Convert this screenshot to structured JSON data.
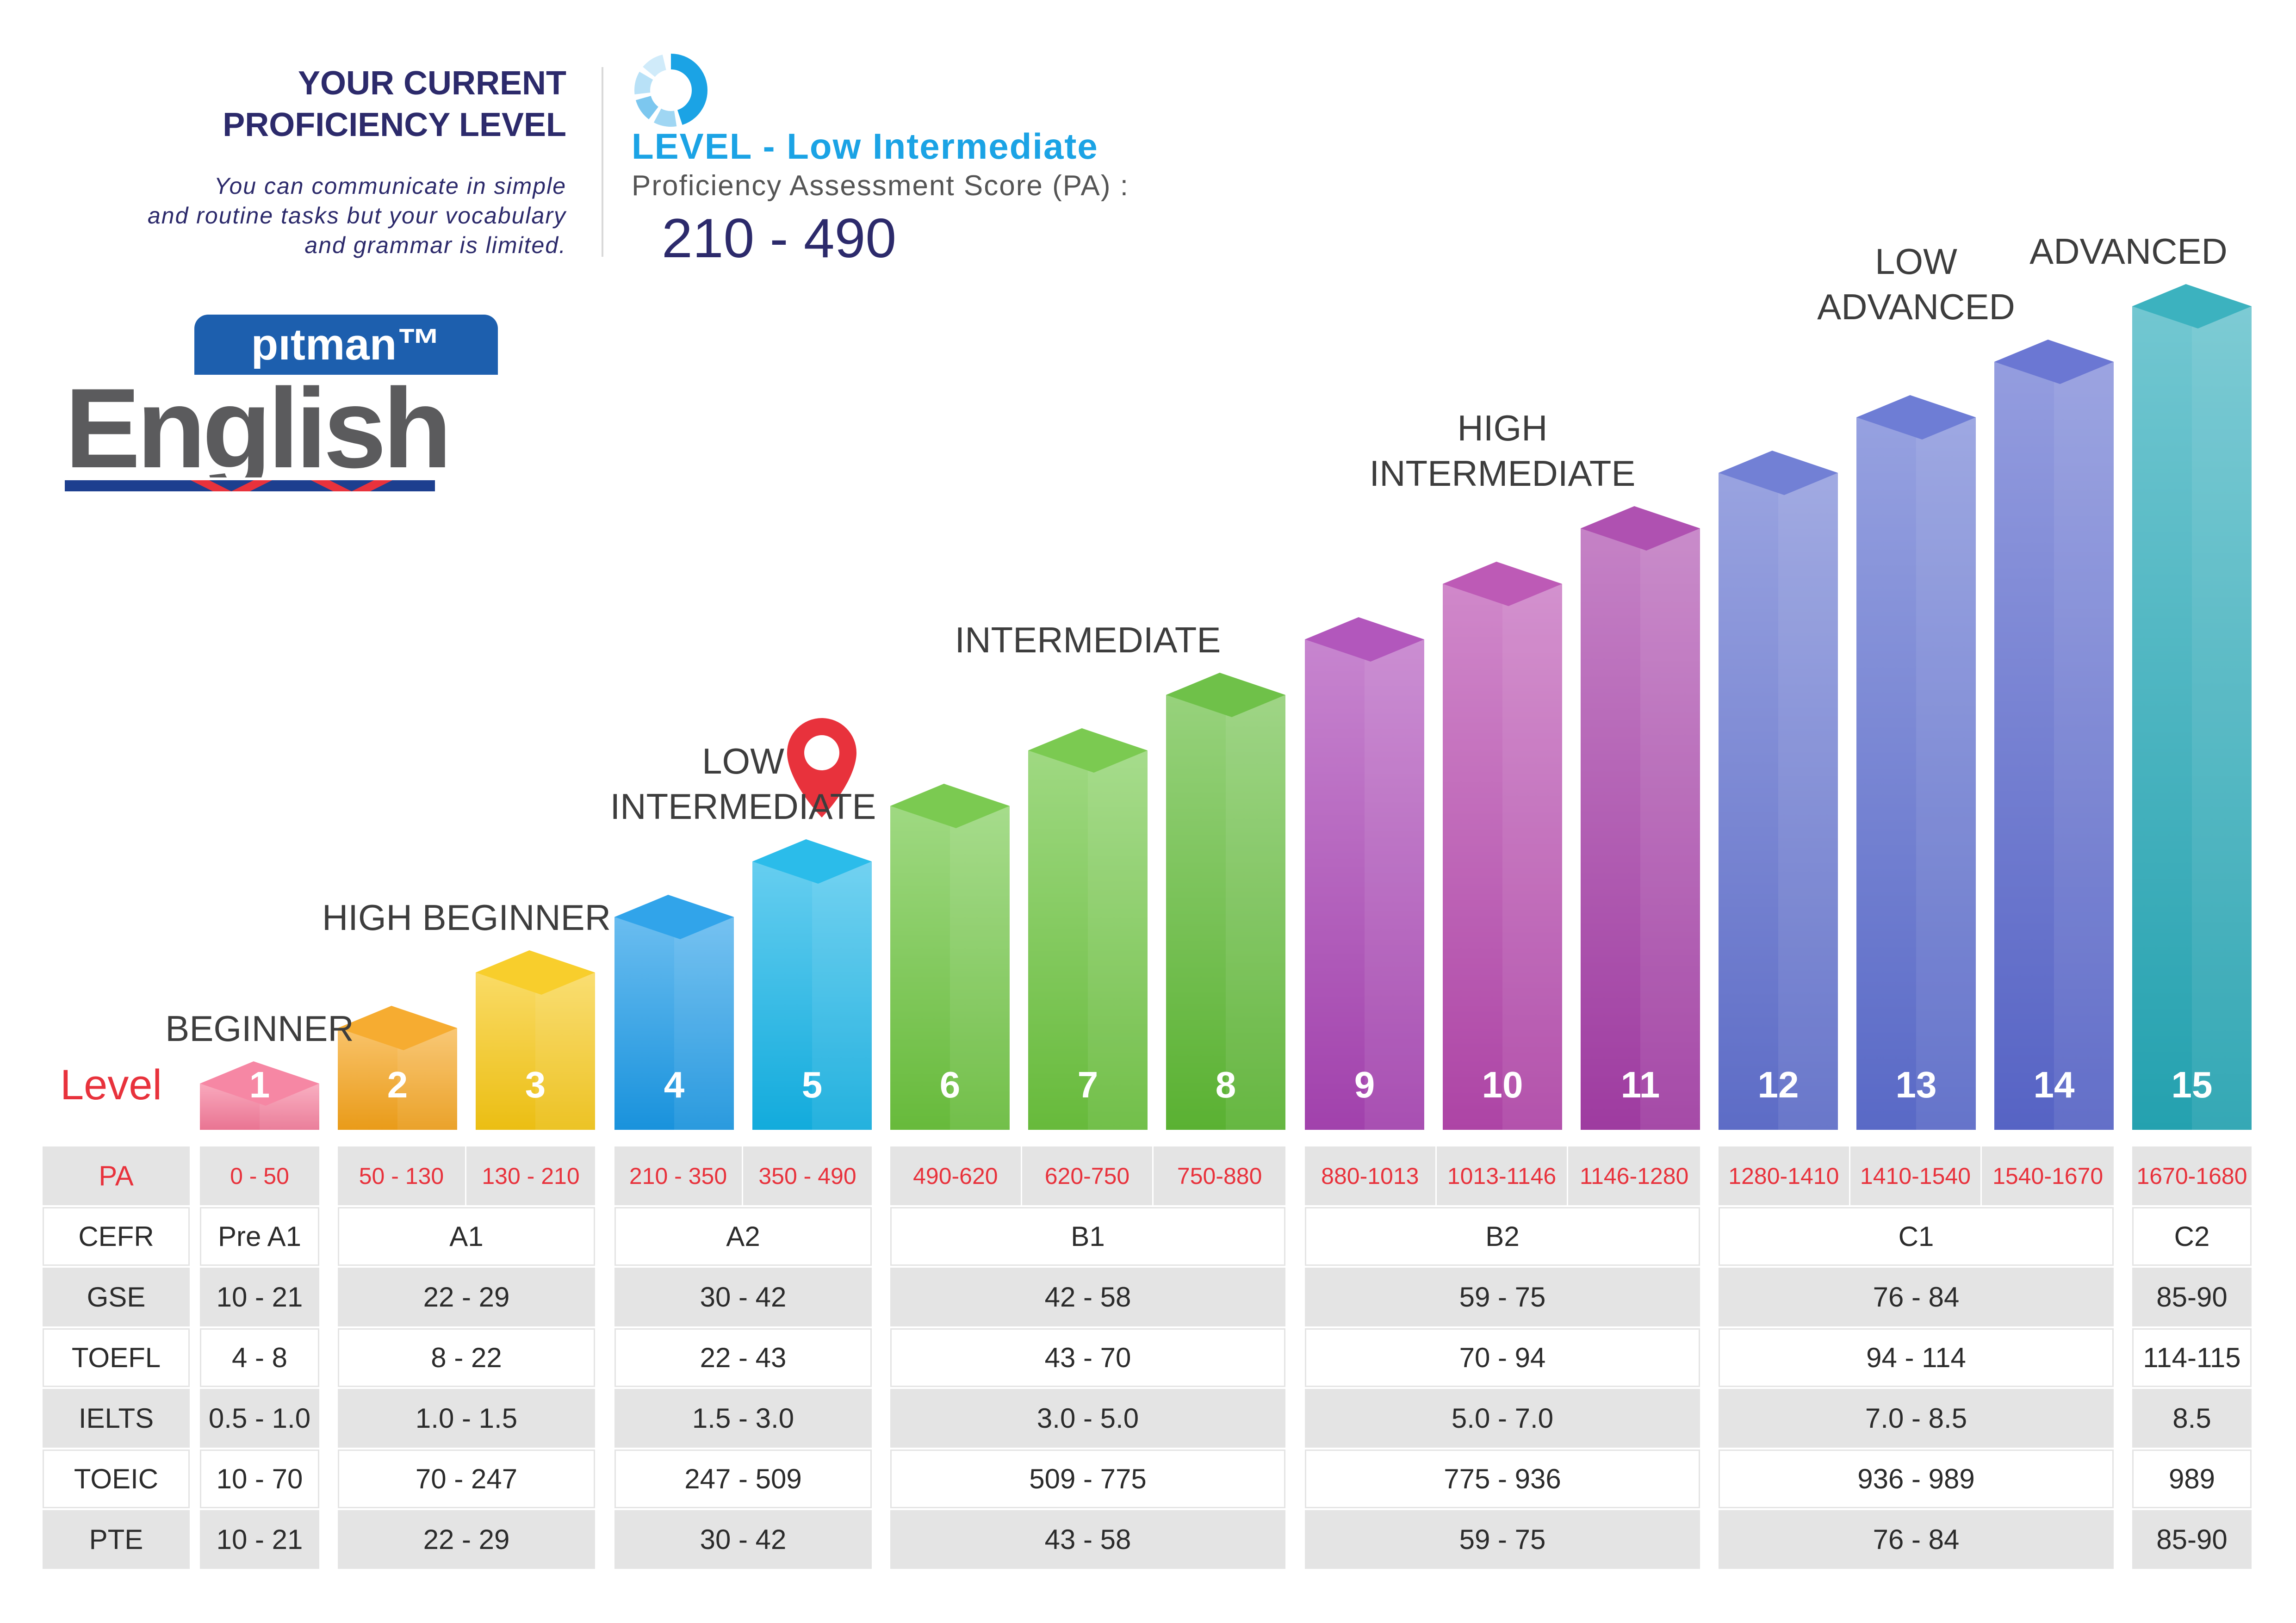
{
  "header": {
    "title_line1": "YOUR CURRENT",
    "title_line2": "PROFICIENCY LEVEL",
    "desc_line1": "You can communicate in simple",
    "desc_line2": "and routine tasks but your vocabulary",
    "desc_line3": "and grammar is limited.",
    "level_title": "LEVEL - Low Intermediate",
    "pa_label": "Proficiency Assessment Score (PA) :",
    "pa_value": "210 - 490"
  },
  "logo": {
    "small": "pıtman™",
    "big": "English"
  },
  "colors": {
    "title": "#2c2a6b",
    "accent_blue": "#1ba3e5",
    "accent_red": "#e8323c",
    "table_shade": "#e4e4e4"
  },
  "chart_data": {
    "type": "bar",
    "level_label": "Level",
    "categories": [
      "1",
      "2",
      "3",
      "4",
      "5",
      "6",
      "7",
      "8",
      "9",
      "10",
      "11",
      "12",
      "13",
      "14",
      "15"
    ],
    "values": [
      1,
      2,
      3,
      4,
      5,
      6,
      7,
      8,
      9,
      10,
      11,
      12,
      13,
      14,
      15
    ],
    "bar_colors": [
      "#f57a9a",
      "#f5a31a",
      "#f7c814",
      "#1a9ae8",
      "#13b4e8",
      "#6cc43e",
      "#6cc43e",
      "#5fba35",
      "#a944b5",
      "#b648ae",
      "#a63ea8",
      "#6272d0",
      "#5e6fd0",
      "#5a68ce",
      "#26a9b8"
    ],
    "current_level": 5,
    "groups": [
      {
        "label_lines": [
          "BEGINNER"
        ],
        "levels": [
          1
        ]
      },
      {
        "label_lines": [
          "HIGH BEGINNER"
        ],
        "levels": [
          2,
          3
        ]
      },
      {
        "label_lines": [
          "LOW",
          "INTERMEDIATE"
        ],
        "levels": [
          4,
          5
        ]
      },
      {
        "label_lines": [
          "INTERMEDIATE"
        ],
        "levels": [
          6,
          7,
          8
        ]
      },
      {
        "label_lines": [
          "HIGH",
          "INTERMEDIATE"
        ],
        "levels": [
          9,
          10,
          11
        ]
      },
      {
        "label_lines": [
          "LOW",
          "ADVANCED"
        ],
        "levels": [
          12,
          13,
          14
        ]
      },
      {
        "label_lines": [
          "ADVANCED"
        ],
        "levels": [
          15
        ]
      }
    ],
    "table": {
      "pa_header": "PA",
      "pa": [
        "0 - 50",
        "50 - 130",
        "130 - 210",
        "210 - 350",
        "350 - 490",
        "490-620",
        "620-750",
        "750-880",
        "880-1013",
        "1013-1146",
        "1146-1280",
        "1280-1410",
        "1410-1540",
        "1540-1670",
        "1670-1680"
      ],
      "rows": [
        {
          "header": "CEFR",
          "values": [
            "Pre A1",
            "A1",
            "A2",
            "B1",
            "B2",
            "C1",
            "C2"
          ]
        },
        {
          "header": "GSE",
          "values": [
            "10 - 21",
            "22 - 29",
            "30 - 42",
            "42 - 58",
            "59 - 75",
            "76 - 84",
            "85-90"
          ]
        },
        {
          "header": "TOEFL",
          "values": [
            "4 - 8",
            "8 - 22",
            "22 - 43",
            "43 - 70",
            "70 - 94",
            "94 - 114",
            "114-115"
          ]
        },
        {
          "header": "IELTS",
          "values": [
            "0.5 - 1.0",
            "1.0 - 1.5",
            "1.5 - 3.0",
            "3.0 - 5.0",
            "5.0 - 7.0",
            "7.0 - 8.5",
            "8.5"
          ]
        },
        {
          "header": "TOEIC",
          "values": [
            "10 - 70",
            "70 - 247",
            "247 - 509",
            "509 - 775",
            "775 - 936",
            "936 - 989",
            "989"
          ]
        },
        {
          "header": "PTE",
          "values": [
            "10 - 21",
            "22 - 29",
            "30 - 42",
            "43 - 58",
            "59 - 75",
            "76 - 84",
            "85-90"
          ]
        }
      ]
    }
  }
}
